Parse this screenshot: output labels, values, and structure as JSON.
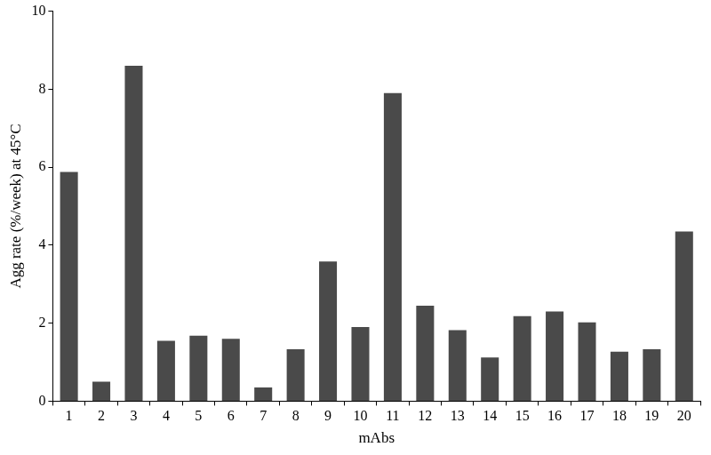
{
  "chart_data": {
    "type": "bar",
    "x_label": "mAbs",
    "y_label": "Agg rate (%/week) at 45°C",
    "categories": [
      "1",
      "2",
      "3",
      "4",
      "5",
      "6",
      "7",
      "8",
      "9",
      "10",
      "11",
      "12",
      "13",
      "14",
      "15",
      "16",
      "17",
      "18",
      "19",
      "20"
    ],
    "values": [
      5.88,
      0.5,
      8.6,
      1.55,
      1.68,
      1.6,
      0.35,
      1.33,
      3.58,
      1.9,
      7.9,
      2.45,
      1.82,
      1.12,
      2.18,
      2.3,
      2.02,
      1.27,
      1.33,
      4.35
    ],
    "color": "#4a4a4a",
    "ylim": [
      0,
      10
    ],
    "yticks": [
      0,
      2,
      4,
      6,
      8,
      10
    ],
    "grid": false
  }
}
